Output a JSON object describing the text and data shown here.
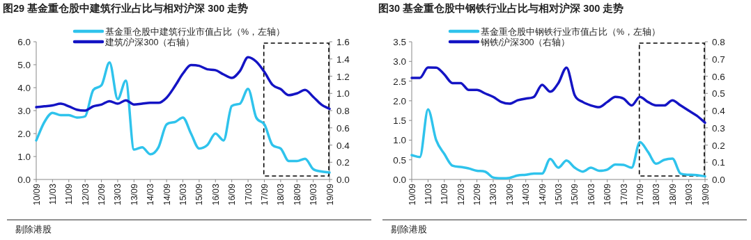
{
  "chart_data": [
    {
      "type": "line",
      "title": "图29 基金重仓股中建筑行业占比与相对沪深 300 走势",
      "categories": [
        "10/09",
        null,
        "11/03",
        null,
        "11/09",
        null,
        "12/03",
        null,
        "12/09",
        null,
        "13/03",
        null,
        "13/09",
        null,
        "14/03",
        null,
        "14/09",
        null,
        "15/03",
        null,
        "15/09",
        null,
        "16/03",
        null,
        "16/09",
        null,
        "17/03",
        null,
        "17/09",
        null,
        "18/03",
        null,
        "18/09",
        null,
        "19/03",
        null,
        "19/09"
      ],
      "series": [
        {
          "name": "基金重仓股中建筑行业市值占比（%，左轴）",
          "color": "#2fc3ec",
          "values": [
            1.7,
            2.5,
            2.9,
            2.8,
            2.8,
            2.7,
            2.75,
            3.9,
            4.1,
            5.1,
            3.5,
            4.3,
            1.3,
            1.4,
            1.1,
            1.4,
            2.4,
            2.5,
            2.7,
            2.0,
            1.35,
            1.5,
            2.0,
            1.7,
            3.2,
            3.3,
            3.95,
            2.7,
            2.4,
            1.5,
            1.35,
            0.8,
            0.8,
            0.9,
            0.45,
            0.35,
            0.3
          ]
        },
        {
          "name": "建筑/沪深300（右轴）",
          "color": "#1414c4",
          "axis": "y2",
          "values": [
            0.84,
            0.85,
            0.86,
            0.88,
            0.85,
            0.81,
            0.8,
            0.85,
            0.87,
            0.91,
            0.88,
            0.92,
            0.87,
            0.88,
            0.89,
            0.89,
            0.95,
            1.08,
            1.23,
            1.33,
            1.32,
            1.28,
            1.27,
            1.22,
            1.18,
            1.26,
            1.42,
            1.37,
            1.25,
            1.1,
            1.05,
            0.98,
            1.0,
            1.04,
            0.96,
            0.87,
            0.82
          ]
        }
      ],
      "ylim": [
        0,
        6
      ],
      "yticks": [
        {
          "value": 0,
          "label": "0.0"
        },
        {
          "value": 1,
          "label": "1.0"
        },
        {
          "value": 2,
          "label": "2.0"
        },
        {
          "value": 3,
          "label": "3.0"
        },
        {
          "value": 4,
          "label": "4.0"
        },
        {
          "value": 5,
          "label": "5.0"
        },
        {
          "value": 6,
          "label": "6.0"
        }
      ],
      "y2lim": [
        0,
        1.6
      ],
      "y2ticks": [
        {
          "value": 0,
          "label": "0.0"
        },
        {
          "value": 0.2,
          "label": "0.2"
        },
        {
          "value": 0.4,
          "label": "0.4"
        },
        {
          "value": 0.6,
          "label": "0.6"
        },
        {
          "value": 0.8,
          "label": "0.8"
        },
        {
          "value": 1,
          "label": "1.0"
        },
        {
          "value": 1.2,
          "label": "1.2"
        },
        {
          "value": 1.4,
          "label": "1.4"
        },
        {
          "value": 1.6,
          "label": "1.6"
        }
      ],
      "legend": "top",
      "annotations": [
        "剔除港股"
      ]
    },
    {
      "type": "line",
      "title": "图30 基金重仓股中钢铁行业占比与相对沪深 300 走势",
      "categories": [
        "10/09",
        null,
        "11/03",
        null,
        "11/09",
        null,
        "12/03",
        null,
        "12/09",
        null,
        "13/03",
        null,
        "13/09",
        null,
        "14/03",
        null,
        "14/09",
        null,
        "15/03",
        null,
        "15/09",
        null,
        "16/03",
        null,
        "16/09",
        null,
        "17/03",
        null,
        "17/09",
        null,
        "18/03",
        null,
        "18/09",
        null,
        "19/03",
        null,
        "19/09"
      ],
      "series": [
        {
          "name": "基金重仓股中钢铁行业市值占比（%，左轴）",
          "color": "#2fc3ec",
          "values": [
            0.62,
            0.57,
            1.78,
            1.0,
            0.65,
            0.35,
            0.32,
            0.28,
            0.22,
            0.2,
            0.05,
            0.03,
            0.04,
            0.1,
            0.12,
            0.15,
            0.15,
            0.52,
            0.3,
            0.48,
            0.3,
            0.2,
            0.3,
            0.22,
            0.25,
            0.38,
            0.37,
            0.3,
            0.95,
            0.7,
            0.4,
            0.5,
            0.53,
            0.15,
            0.12,
            0.11,
            0.08
          ]
        },
        {
          "name": "钢铁/沪深300（右轴）",
          "color": "#1414c4",
          "axis": "y2",
          "values": [
            0.59,
            0.59,
            0.65,
            0.65,
            0.61,
            0.56,
            0.56,
            0.52,
            0.52,
            0.5,
            0.48,
            0.45,
            0.44,
            0.46,
            0.47,
            0.48,
            0.55,
            0.51,
            0.56,
            0.65,
            0.49,
            0.45,
            0.43,
            0.42,
            0.45,
            0.48,
            0.47,
            0.43,
            0.48,
            0.45,
            0.43,
            0.43,
            0.46,
            0.43,
            0.4,
            0.37,
            0.33
          ]
        }
      ],
      "ylim": [
        0,
        3.5
      ],
      "yticks": [
        {
          "value": 0,
          "label": "0.0"
        },
        {
          "value": 0.5,
          "label": "0.5"
        },
        {
          "value": 1,
          "label": "1.0"
        },
        {
          "value": 1.5,
          "label": "1.5"
        },
        {
          "value": 2,
          "label": "2.0"
        },
        {
          "value": 2.5,
          "label": "2.5"
        },
        {
          "value": 3,
          "label": "3.0"
        },
        {
          "value": 3.5,
          "label": "3.5"
        }
      ],
      "y2lim": [
        0,
        0.8
      ],
      "y2ticks": [
        {
          "value": 0,
          "label": "0.0"
        },
        {
          "value": 0.1,
          "label": "0.1"
        },
        {
          "value": 0.2,
          "label": "0.2"
        },
        {
          "value": 0.3,
          "label": "0.3"
        },
        {
          "value": 0.4,
          "label": "0.4"
        },
        {
          "value": 0.5,
          "label": "0.5"
        },
        {
          "value": 0.6,
          "label": "0.6"
        },
        {
          "value": 0.7,
          "label": "0.7"
        },
        {
          "value": 0.8,
          "label": "0.8"
        }
      ],
      "legend": "top",
      "annotations": [
        "剔除港股"
      ]
    }
  ]
}
